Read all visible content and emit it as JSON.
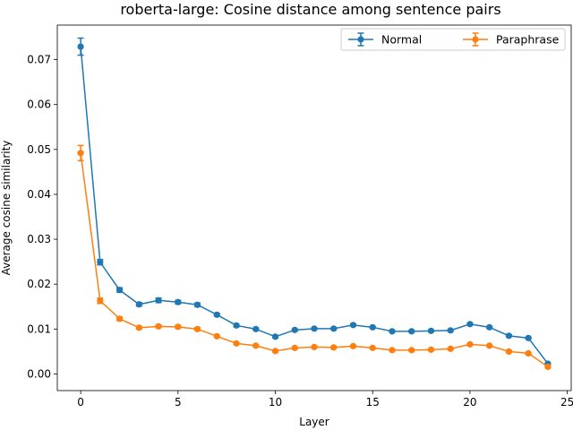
{
  "chart_data": {
    "type": "line",
    "title": "roberta-large: Cosine distance among sentence pairs",
    "xlabel": "Layer",
    "ylabel": "Average cosine similarity",
    "xlim": [
      -1.2,
      25.2
    ],
    "ylim": [
      -0.0037,
      0.0777
    ],
    "xticks": [
      0,
      5,
      10,
      15,
      20,
      25
    ],
    "xtick_labels": [
      "0",
      "5",
      "10",
      "15",
      "20",
      "25"
    ],
    "yticks": [
      0.0,
      0.01,
      0.02,
      0.03,
      0.04,
      0.05,
      0.06,
      0.07
    ],
    "ytick_labels": [
      "0.00",
      "0.01",
      "0.02",
      "0.03",
      "0.04",
      "0.05",
      "0.06",
      "0.07"
    ],
    "grid": false,
    "legend": {
      "placement": "top-right",
      "columns": 2
    },
    "x": [
      0,
      1,
      2,
      3,
      4,
      5,
      6,
      7,
      8,
      9,
      10,
      11,
      12,
      13,
      14,
      15,
      16,
      17,
      18,
      19,
      20,
      21,
      22,
      23,
      24
    ],
    "series": [
      {
        "name": "Normal",
        "color": "#1f77b4",
        "values": [
          0.0729,
          0.0249,
          0.0187,
          0.0155,
          0.0164,
          0.016,
          0.0154,
          0.0132,
          0.0108,
          0.01,
          0.0083,
          0.0098,
          0.0101,
          0.0101,
          0.0109,
          0.0104,
          0.0095,
          0.0095,
          0.0096,
          0.0097,
          0.0111,
          0.0104,
          0.0085,
          0.008,
          0.0023
        ],
        "errors": [
          0.0019,
          0.0006,
          0.0005,
          0.0004,
          0.0005,
          0.0004,
          0.0004,
          0.0003,
          0.0003,
          0.0002,
          0.0002,
          0.0002,
          0.0002,
          0.0002,
          0.0002,
          0.0002,
          0.0002,
          0.0002,
          0.0002,
          0.0002,
          0.0002,
          0.0002,
          0.0002,
          0.0002,
          0.0001
        ]
      },
      {
        "name": "Paraphrase",
        "color": "#ff7f0e",
        "values": [
          0.0492,
          0.0163,
          0.0123,
          0.0103,
          0.0106,
          0.0105,
          0.01,
          0.0084,
          0.0068,
          0.0063,
          0.0051,
          0.0058,
          0.006,
          0.0059,
          0.0062,
          0.0058,
          0.0053,
          0.0053,
          0.0054,
          0.0056,
          0.0066,
          0.0063,
          0.005,
          0.0046,
          0.0016
        ],
        "errors": [
          0.0017,
          0.0006,
          0.0004,
          0.0003,
          0.0003,
          0.0003,
          0.0003,
          0.0002,
          0.0002,
          0.0002,
          0.0002,
          0.0002,
          0.0002,
          0.0002,
          0.0002,
          0.0002,
          0.0002,
          0.0002,
          0.0002,
          0.0002,
          0.0002,
          0.0002,
          0.0002,
          0.0002,
          0.0001
        ]
      }
    ]
  }
}
